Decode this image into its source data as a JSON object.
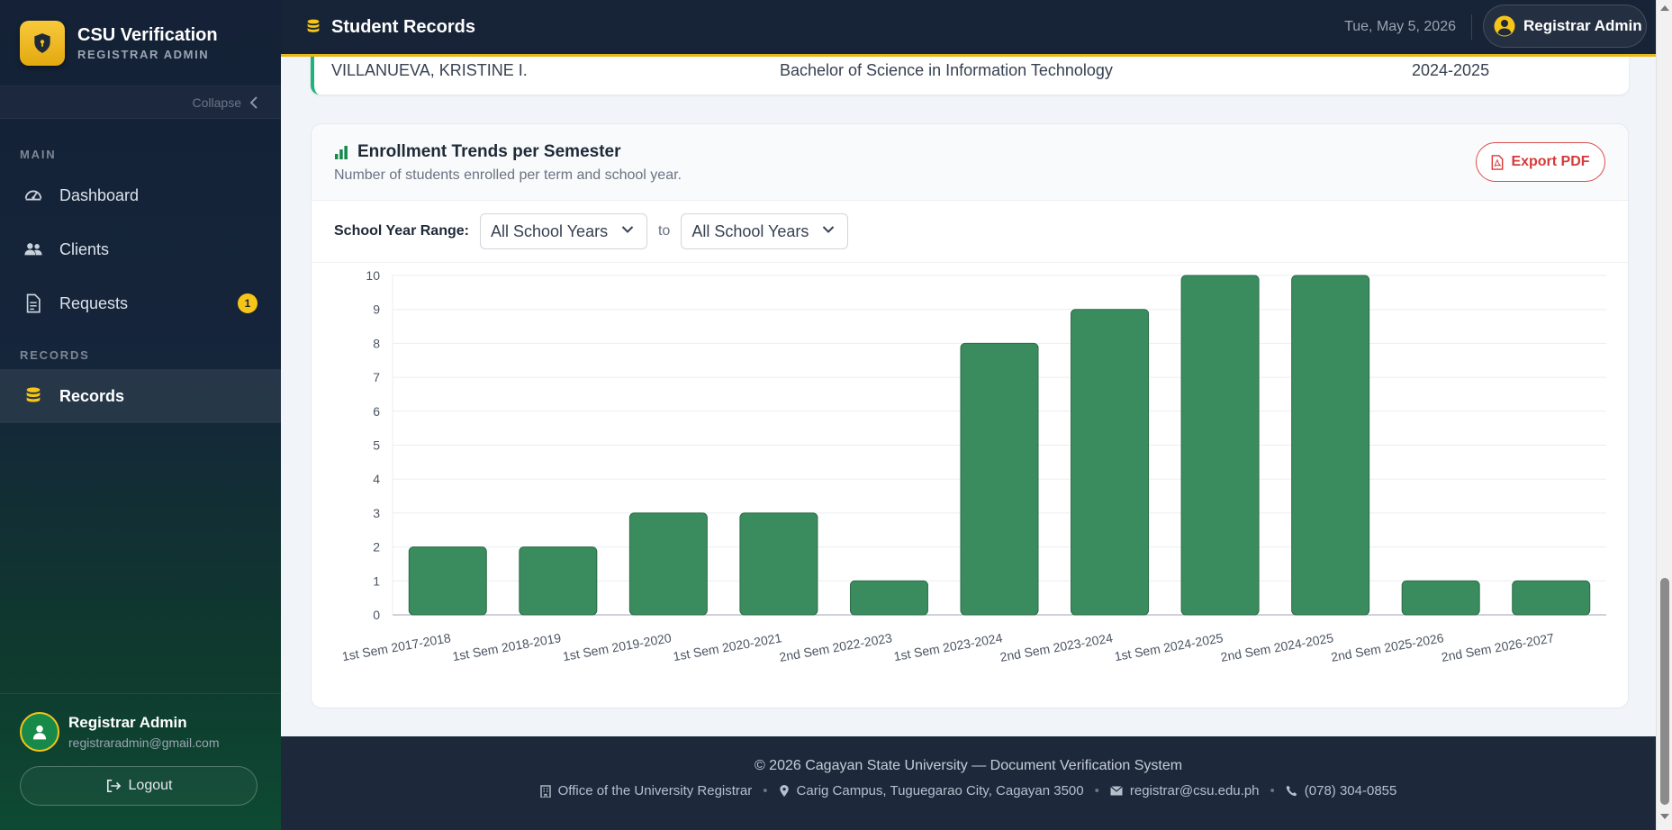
{
  "brand": {
    "title": "CSU Verification",
    "subtitle": "REGISTRAR ADMIN"
  },
  "sidebar": {
    "collapse_label": "Collapse",
    "sections": [
      {
        "label": "MAIN",
        "items": [
          {
            "label": "Dashboard",
            "icon": "gauge-icon"
          },
          {
            "label": "Clients",
            "icon": "users-icon"
          },
          {
            "label": "Requests",
            "icon": "document-icon",
            "badge": "1"
          }
        ]
      },
      {
        "label": "RECORDS",
        "items": [
          {
            "label": "Records",
            "icon": "database-icon",
            "active": true
          }
        ]
      }
    ],
    "user": {
      "name": "Registrar Admin",
      "email": "registraradmin@gmail.com"
    },
    "logout_label": "Logout"
  },
  "header": {
    "title": "Student Records",
    "date": "Tue, May 5, 2026",
    "user_label": "Registrar Admin"
  },
  "record_row": {
    "name": "VILLANUEVA, KRISTINE I.",
    "program": "Bachelor of Science in Information Technology",
    "school_year": "2024-2025"
  },
  "enrollment_card": {
    "title": "Enrollment Trends per Semester",
    "subtitle": "Number of students enrolled per term and school year.",
    "export_label": "Export PDF",
    "filter_label": "School Year Range:",
    "from_value": "All School Years",
    "to_label": "to",
    "to_value": "All School Years"
  },
  "chart_data": {
    "type": "bar",
    "categories": [
      "1st Sem 2017-2018",
      "1st Sem 2018-2019",
      "1st Sem 2019-2020",
      "1st Sem 2020-2021",
      "2nd Sem 2022-2023",
      "1st Sem 2023-2024",
      "2nd Sem 2023-2024",
      "1st Sem 2024-2025",
      "2nd Sem 2024-2025",
      "2nd Sem 2025-2026",
      "2nd Sem 2026-2027"
    ],
    "values": [
      2,
      2,
      3,
      3,
      1,
      8,
      9,
      10,
      10,
      1,
      1
    ],
    "ylim": [
      0,
      10
    ],
    "yticks": [
      0,
      1,
      2,
      3,
      4,
      5,
      6,
      7,
      8,
      9,
      10
    ],
    "grid": true,
    "bar_color": "#3a8c5e",
    "bar_border": "#2a6b47"
  },
  "footer": {
    "copyright": "© 2026 Cagayan State University — Document Verification System",
    "office": "Office of the University Registrar",
    "address": "Carig Campus, Tuguegarao City, Cagayan 3500",
    "email": "registrar@csu.edu.ph",
    "phone": "(078) 304-0855"
  },
  "colors": {
    "accent": "#e9b81b",
    "sidebar_bg": "#142136",
    "primary_green": "#178a4a",
    "danger": "#d63a3a"
  }
}
